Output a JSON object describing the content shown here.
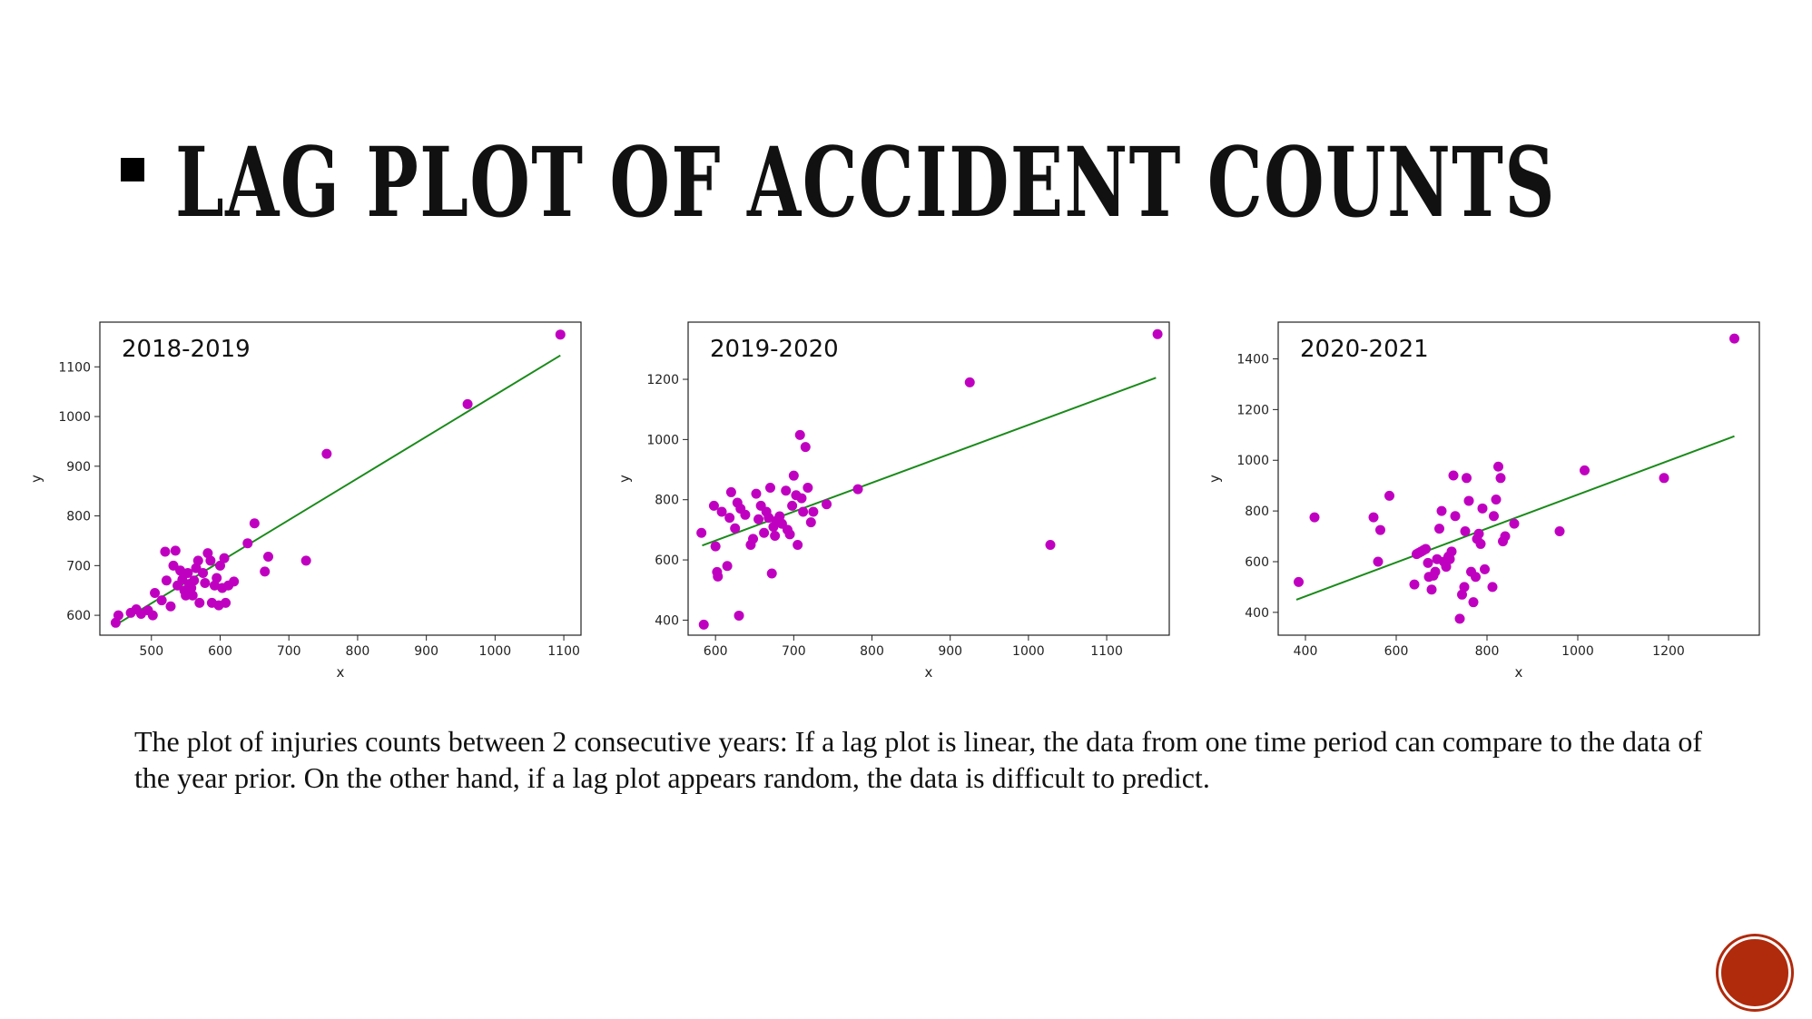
{
  "slide": {
    "title": "LAG PLOT OF ACCIDENT COUNTS",
    "caption": "The plot of injuries counts between 2 consecutive years: If a lag plot is linear, the data from one time period can compare to the data of the year prior. On the other hand, if a lag plot appears random, the data is difficult to predict."
  },
  "colors": {
    "points": "#c000c0",
    "trend_line": "#1a8a1a",
    "logo": "#b02a0c"
  },
  "chart_data": [
    {
      "type": "scatter",
      "annotation": "2018-2019",
      "xlabel": "x",
      "ylabel": "y",
      "xlim": [
        425,
        1125
      ],
      "ylim": [
        560,
        1190
      ],
      "xticks": [
        500,
        600,
        700,
        800,
        900,
        1000,
        1100
      ],
      "yticks": [
        600,
        700,
        800,
        900,
        1000,
        1100
      ],
      "grid": false,
      "points": [
        [
          448,
          585
        ],
        [
          452,
          600
        ],
        [
          470,
          605
        ],
        [
          478,
          612
        ],
        [
          485,
          603
        ],
        [
          495,
          610
        ],
        [
          502,
          600
        ],
        [
          505,
          645
        ],
        [
          515,
          630
        ],
        [
          520,
          728
        ],
        [
          522,
          670
        ],
        [
          528,
          618
        ],
        [
          532,
          700
        ],
        [
          535,
          730
        ],
        [
          538,
          660
        ],
        [
          542,
          690
        ],
        [
          545,
          672
        ],
        [
          548,
          650
        ],
        [
          550,
          640
        ],
        [
          553,
          685
        ],
        [
          555,
          663
        ],
        [
          558,
          655
        ],
        [
          560,
          640
        ],
        [
          562,
          670
        ],
        [
          565,
          695
        ],
        [
          568,
          710
        ],
        [
          570,
          625
        ],
        [
          575,
          685
        ],
        [
          578,
          665
        ],
        [
          582,
          725
        ],
        [
          586,
          710
        ],
        [
          588,
          625
        ],
        [
          592,
          660
        ],
        [
          595,
          675
        ],
        [
          598,
          620
        ],
        [
          600,
          700
        ],
        [
          603,
          655
        ],
        [
          606,
          715
        ],
        [
          608,
          625
        ],
        [
          612,
          660
        ],
        [
          620,
          668
        ],
        [
          640,
          745
        ],
        [
          650,
          785
        ],
        [
          665,
          688
        ],
        [
          670,
          718
        ],
        [
          725,
          710
        ],
        [
          755,
          925
        ],
        [
          960,
          1025
        ],
        [
          1095,
          1165
        ]
      ],
      "trend": [
        [
          445,
          578
        ],
        [
          1095,
          1123
        ]
      ]
    },
    {
      "type": "scatter",
      "annotation": "2019-2020",
      "xlabel": "x",
      "ylabel": "y",
      "xlim": [
        565,
        1180
      ],
      "ylim": [
        350,
        1390
      ],
      "xticks": [
        600,
        700,
        800,
        900,
        1000,
        1100
      ],
      "yticks": [
        400,
        600,
        800,
        1000,
        1200
      ],
      "grid": false,
      "points": [
        [
          582,
          690
        ],
        [
          585,
          385
        ],
        [
          598,
          780
        ],
        [
          600,
          645
        ],
        [
          602,
          560
        ],
        [
          603,
          545
        ],
        [
          608,
          760
        ],
        [
          615,
          580
        ],
        [
          618,
          740
        ],
        [
          620,
          825
        ],
        [
          625,
          705
        ],
        [
          628,
          790
        ],
        [
          630,
          415
        ],
        [
          632,
          770
        ],
        [
          638,
          750
        ],
        [
          645,
          650
        ],
        [
          648,
          670
        ],
        [
          652,
          820
        ],
        [
          655,
          735
        ],
        [
          658,
          780
        ],
        [
          662,
          690
        ],
        [
          665,
          760
        ],
        [
          668,
          740
        ],
        [
          670,
          840
        ],
        [
          672,
          555
        ],
        [
          674,
          710
        ],
        [
          676,
          680
        ],
        [
          678,
          730
        ],
        [
          682,
          745
        ],
        [
          685,
          720
        ],
        [
          690,
          830
        ],
        [
          692,
          700
        ],
        [
          695,
          685
        ],
        [
          698,
          780
        ],
        [
          700,
          880
        ],
        [
          703,
          815
        ],
        [
          705,
          650
        ],
        [
          708,
          1015
        ],
        [
          710,
          805
        ],
        [
          712,
          760
        ],
        [
          715,
          975
        ],
        [
          718,
          840
        ],
        [
          722,
          725
        ],
        [
          725,
          760
        ],
        [
          742,
          785
        ],
        [
          782,
          835
        ],
        [
          925,
          1190
        ],
        [
          1028,
          650
        ],
        [
          1165,
          1350
        ]
      ],
      "trend": [
        [
          583,
          648
        ],
        [
          1163,
          1205
        ]
      ]
    },
    {
      "type": "scatter",
      "annotation": "2020-2021",
      "xlabel": "x",
      "ylabel": "y",
      "xlim": [
        340,
        1400
      ],
      "ylim": [
        310,
        1545
      ],
      "xticks": [
        400,
        600,
        800,
        1000,
        1200
      ],
      "yticks": [
        400,
        600,
        800,
        1000,
        1200,
        1400
      ],
      "grid": false,
      "points": [
        [
          385,
          520
        ],
        [
          420,
          775
        ],
        [
          550,
          775
        ],
        [
          560,
          600
        ],
        [
          565,
          725
        ],
        [
          585,
          860
        ],
        [
          640,
          510
        ],
        [
          645,
          630
        ],
        [
          650,
          635
        ],
        [
          655,
          640
        ],
        [
          660,
          645
        ],
        [
          665,
          650
        ],
        [
          670,
          595
        ],
        [
          672,
          540
        ],
        [
          678,
          490
        ],
        [
          682,
          545
        ],
        [
          686,
          560
        ],
        [
          690,
          610
        ],
        [
          695,
          730
        ],
        [
          700,
          800
        ],
        [
          705,
          600
        ],
        [
          710,
          580
        ],
        [
          715,
          620
        ],
        [
          718,
          610
        ],
        [
          722,
          640
        ],
        [
          726,
          940
        ],
        [
          730,
          780
        ],
        [
          740,
          375
        ],
        [
          745,
          470
        ],
        [
          750,
          500
        ],
        [
          752,
          720
        ],
        [
          755,
          930
        ],
        [
          760,
          840
        ],
        [
          765,
          560
        ],
        [
          770,
          440
        ],
        [
          775,
          540
        ],
        [
          778,
          690
        ],
        [
          782,
          710
        ],
        [
          786,
          670
        ],
        [
          790,
          810
        ],
        [
          795,
          570
        ],
        [
          812,
          500
        ],
        [
          815,
          780
        ],
        [
          820,
          845
        ],
        [
          825,
          975
        ],
        [
          830,
          930
        ],
        [
          835,
          680
        ],
        [
          840,
          700
        ],
        [
          860,
          750
        ],
        [
          960,
          720
        ],
        [
          1015,
          960
        ],
        [
          1190,
          930
        ],
        [
          1345,
          1480
        ]
      ],
      "trend": [
        [
          380,
          450
        ],
        [
          1345,
          1095
        ]
      ]
    }
  ]
}
